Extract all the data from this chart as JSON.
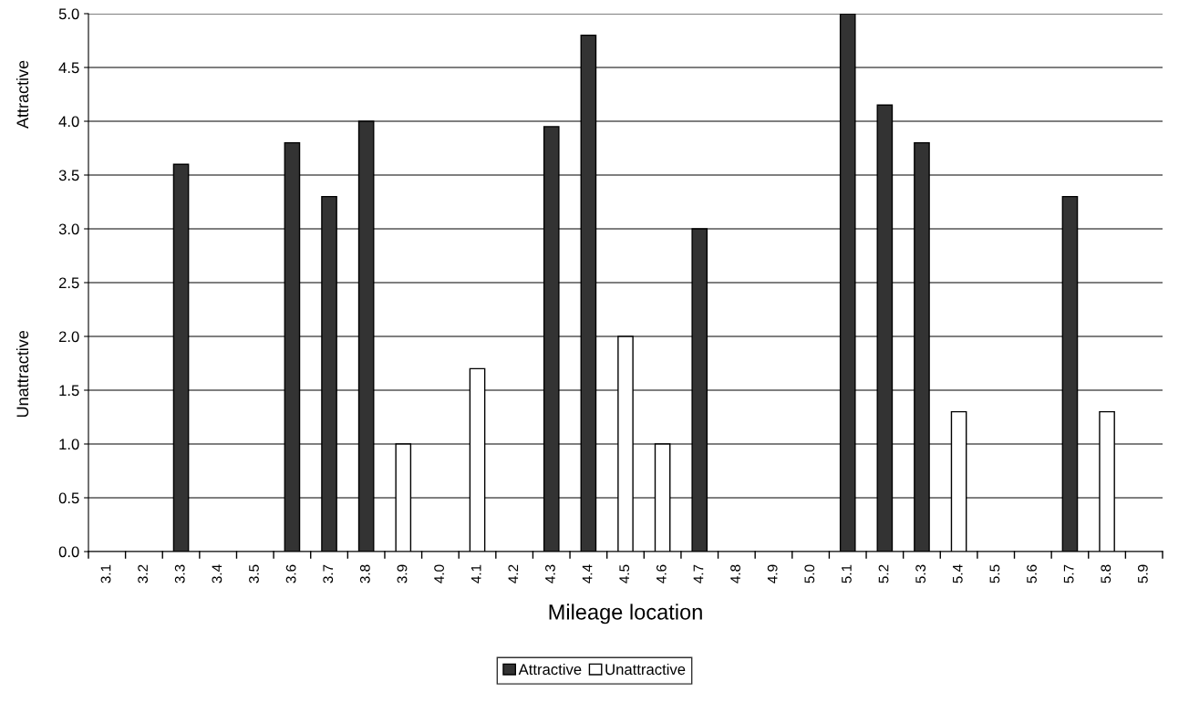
{
  "chart_data": {
    "type": "bar",
    "stacked": true,
    "xlabel": "Mileage location",
    "annotations": [
      "Unattractive",
      "Attractive"
    ],
    "categories": [
      "3.1",
      "3.2",
      "3.3",
      "3.4",
      "3.5",
      "3.6",
      "3.7",
      "3.8",
      "3.9",
      "4.0",
      "4.1",
      "4.2",
      "4.3",
      "4.4",
      "4.5",
      "4.6",
      "4.7",
      "4.8",
      "4.9",
      "5.0",
      "5.1",
      "5.2",
      "5.3",
      "5.4",
      "5.5",
      "5.6",
      "5.7",
      "5.8",
      "5.9"
    ],
    "series": [
      {
        "name": "Attractive",
        "color": "#333333",
        "values": [
          null,
          null,
          3.6,
          null,
          null,
          3.8,
          3.3,
          4.0,
          null,
          null,
          null,
          null,
          3.95,
          4.8,
          null,
          null,
          3.0,
          null,
          null,
          null,
          5.0,
          4.15,
          3.8,
          null,
          null,
          null,
          3.3,
          null,
          null
        ]
      },
      {
        "name": "Unattractive",
        "color": "#ffffff",
        "values": [
          null,
          null,
          null,
          null,
          null,
          null,
          null,
          null,
          1.0,
          null,
          1.7,
          null,
          null,
          null,
          2.0,
          1.0,
          null,
          null,
          null,
          null,
          null,
          null,
          null,
          1.3,
          null,
          null,
          null,
          1.3,
          null
        ]
      }
    ],
    "ylim": [
      0,
      5.0
    ],
    "yticks": [
      {
        "value": 0,
        "label": "0.0"
      },
      {
        "value": 0.5,
        "label": "0.5"
      },
      {
        "value": 1,
        "label": "1.0"
      },
      {
        "value": 1.5,
        "label": "1.5"
      },
      {
        "value": 2,
        "label": "2.0"
      },
      {
        "value": 2.5,
        "label": "2.5"
      },
      {
        "value": 3,
        "label": "3.0"
      },
      {
        "value": 3.5,
        "label": "3.5"
      },
      {
        "value": 4,
        "label": "4.0"
      },
      {
        "value": 4.5,
        "label": "4.5"
      },
      {
        "value": 5,
        "label": "5.0"
      }
    ],
    "grid": "y",
    "legend": "bottom"
  }
}
